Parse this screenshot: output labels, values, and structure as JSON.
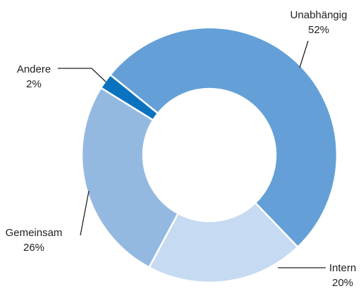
{
  "chart_data": {
    "type": "donut",
    "categories": [
      "Unabhängig",
      "Intern",
      "Gemeinsam",
      "Andere"
    ],
    "values": [
      52,
      20,
      26,
      2
    ],
    "value_labels": [
      "52%",
      "20%",
      "26%",
      "2%"
    ],
    "colors": [
      "#64a0d7",
      "#c6daf1",
      "#94b9e1",
      "#0b72c0"
    ]
  }
}
